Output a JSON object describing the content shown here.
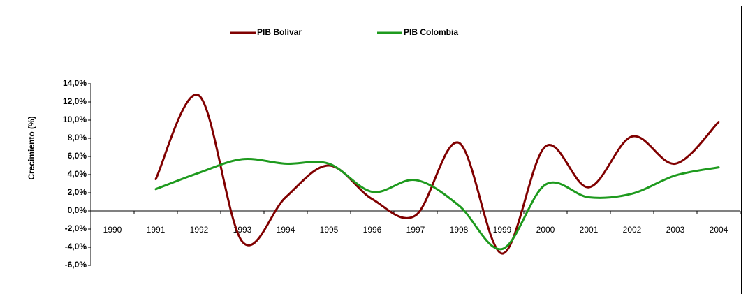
{
  "chart_data": {
    "type": "line",
    "y_label": "Crecimiento (%)",
    "categories": [
      "1990",
      "1991",
      "1992",
      "1993",
      "1994",
      "1995",
      "1996",
      "1997",
      "1998",
      "1999",
      "2000",
      "2001",
      "2002",
      "2003",
      "2004"
    ],
    "series": [
      {
        "name": "PIB Bolívar",
        "color": "#800000",
        "values": [
          null,
          3.5,
          12.7,
          -3.4,
          1.5,
          5.0,
          1.3,
          -0.5,
          7.5,
          -4.7,
          7.1,
          2.6,
          8.2,
          5.2,
          9.8
        ]
      },
      {
        "name": "PIB Colombia",
        "color": "#1e9a1e",
        "values": [
          null,
          2.4,
          4.2,
          5.7,
          5.2,
          5.2,
          2.1,
          3.4,
          0.6,
          -4.2,
          2.9,
          1.5,
          1.9,
          3.9,
          4.8
        ]
      }
    ],
    "ylim": [
      -6,
      14
    ],
    "yticks": [
      {
        "value": -6,
        "label": "-6,0%"
      },
      {
        "value": -4,
        "label": "-4,0%"
      },
      {
        "value": -2,
        "label": "-2,0%"
      },
      {
        "value": 0,
        "label": "0,0%"
      },
      {
        "value": 2,
        "label": "2,0%"
      },
      {
        "value": 4,
        "label": "4,0%"
      },
      {
        "value": 6,
        "label": "6,0%"
      },
      {
        "value": 8,
        "label": "8,0%"
      },
      {
        "value": 10,
        "label": "10,0%"
      },
      {
        "value": 12,
        "label": "12,0%"
      },
      {
        "value": 14,
        "label": "14,0%"
      }
    ],
    "legend": "top",
    "smooth": true
  }
}
